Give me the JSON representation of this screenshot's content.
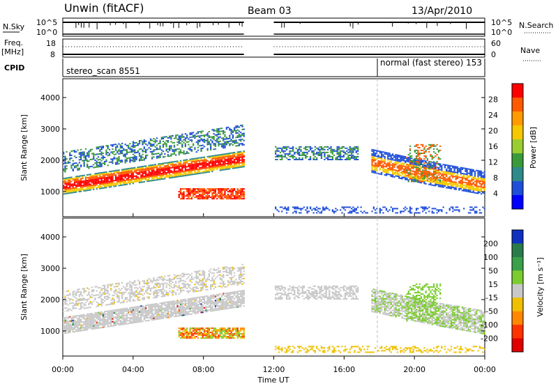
{
  "header": {
    "station": "Unwin (fitACF)",
    "beam": "Beam 03",
    "date": "13/Apr/2010"
  },
  "noise_panel": {
    "left_label": "N.Sky",
    "left_ticks": [
      "10^5",
      "10^0"
    ],
    "right_ticks": [
      "10^5",
      "10^0"
    ],
    "right_label": "N.Search"
  },
  "freq_panel": {
    "left_label_1": "Freq.",
    "left_label_2": "[MHz]",
    "left_ticks": [
      "18",
      "8"
    ],
    "right_ticks": [
      "60",
      "0"
    ],
    "right_label": "Nave"
  },
  "cpid": {
    "label": "CPID",
    "mode_1": "stereo_scan 8551",
    "mode_2": "normal (fast stereo) 153"
  },
  "chart_data": [
    {
      "type": "heatmap",
      "name": "power",
      "ylabel": "Slant Range [km]",
      "yticks": [
        "4000",
        "3000",
        "2000",
        "1000"
      ],
      "ylim": [
        200,
        4600
      ],
      "xlim_hours": [
        0,
        24
      ],
      "colorbar_label": "Power [dB]",
      "colorbar_ticks": [
        "28",
        "24",
        "20",
        "16",
        "12",
        "8",
        "4"
      ],
      "colorbar_colors": [
        "#ff0000",
        "#ff5a00",
        "#ff9a00",
        "#f5c800",
        "#9acd32",
        "#3a9a3a",
        "#2f8a8a",
        "#1f4fd8",
        "#0000ff"
      ],
      "data_gap_hours": [
        10.3,
        12.0
      ]
    },
    {
      "type": "heatmap",
      "name": "velocity",
      "ylabel": "Slant Range [km]",
      "yticks": [
        "4000",
        "3000",
        "2000",
        "1000"
      ],
      "ylim": [
        200,
        4600
      ],
      "xlim_hours": [
        0,
        24
      ],
      "colorbar_label": "Velocity [m s⁻¹]",
      "colorbar_ticks": [
        "200",
        "100",
        "50",
        "15",
        "-15",
        "-50",
        "-100",
        "-200"
      ],
      "colorbar_colors": [
        "#1030c0",
        "#2a7a4a",
        "#3aa04a",
        "#7ccc30",
        "#c8c8c8",
        "#f0c000",
        "#ff8800",
        "#ff3300",
        "#e00000"
      ],
      "data_gap_hours": [
        10.3,
        12.0
      ]
    }
  ],
  "xaxis": {
    "ticks": [
      "00:00",
      "04:00",
      "08:00",
      "12:00",
      "16:00",
      "20:00",
      "00:00"
    ],
    "label": "Time UT"
  }
}
